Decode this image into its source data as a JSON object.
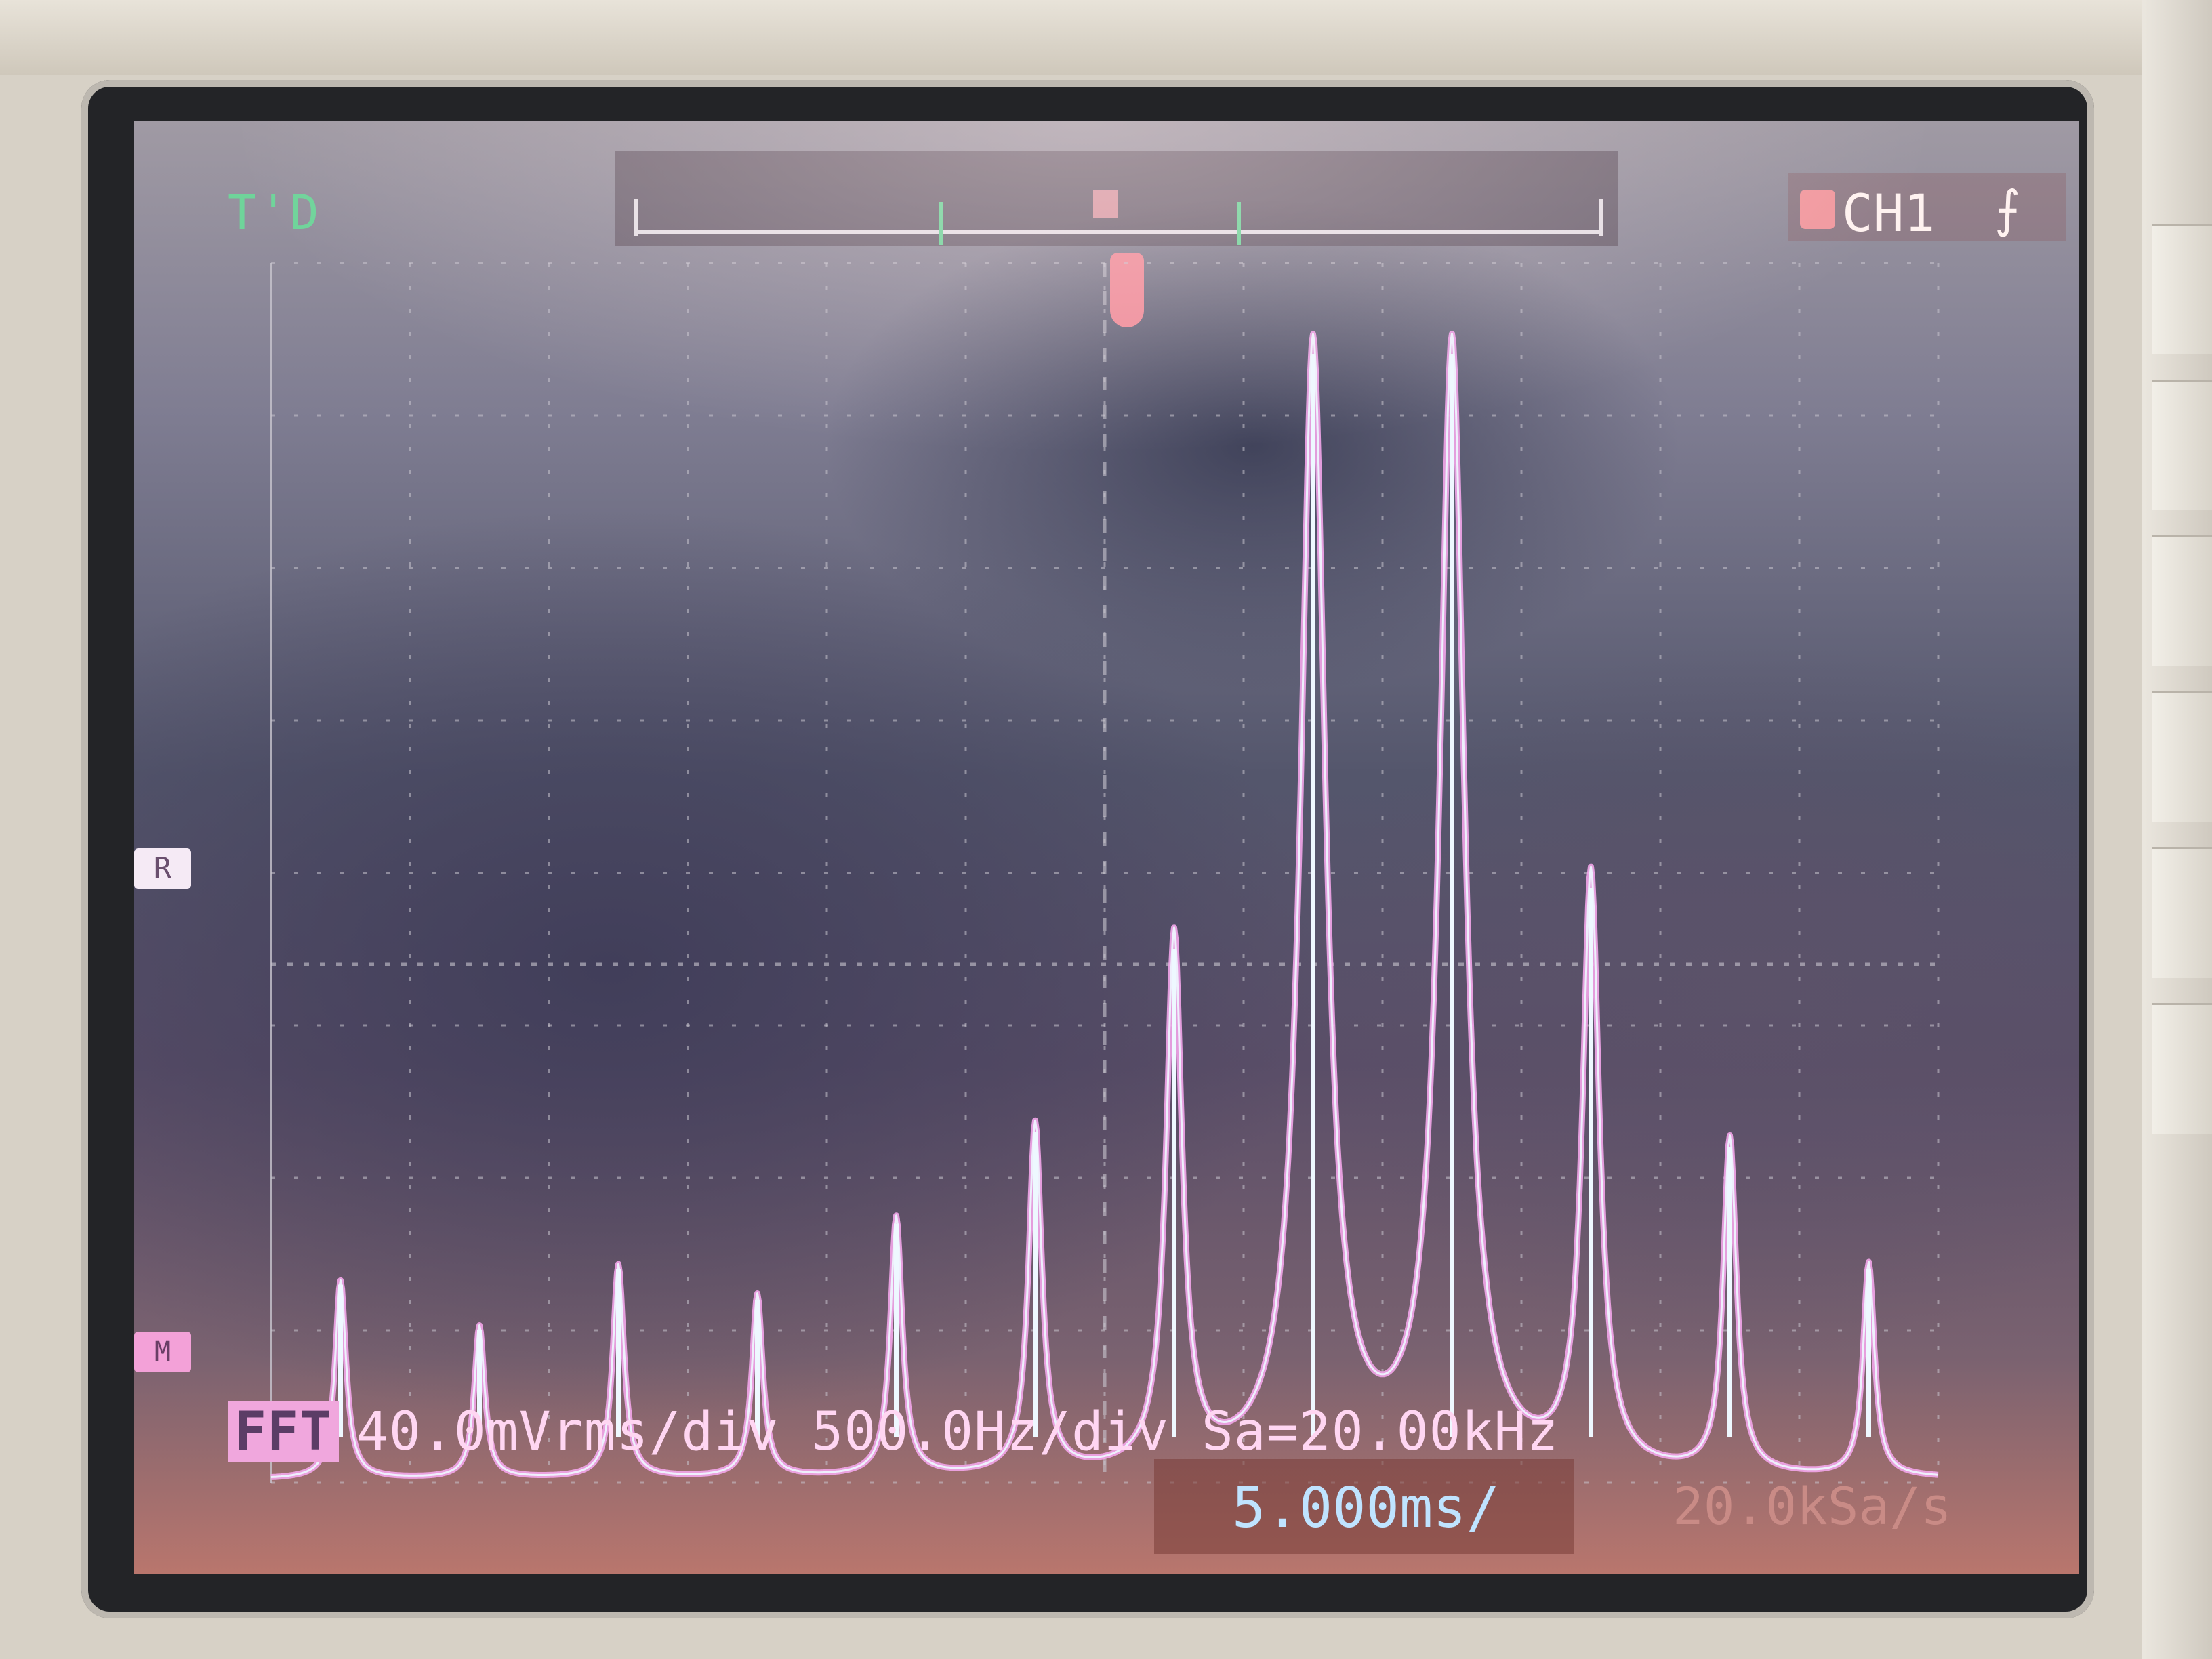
{
  "display": {
    "trigger_status": "T'D",
    "channel": "CH1",
    "trigger_slope_icon": "rising-edge-icon",
    "fft_badge": "FFT",
    "fft_scale": "40.0mVrms/div 500.0Hz/div Sa=20.00kHz",
    "timebase": "5.000ms/",
    "sample_rate": "20.0kSa/s",
    "ref_marker": "R",
    "ground_marker": "M"
  },
  "colors": {
    "trace": "#f3a6ea",
    "trace_core": "#eef8ff",
    "grid": "#c9c6cf",
    "status_text": "#ffd6f2",
    "trigger_text": "#6fd49a"
  },
  "chart_data": {
    "type": "line",
    "xlabel": "",
    "ylabel": "",
    "xlim": [
      0,
      12
    ],
    "ylim": [
      0,
      8
    ],
    "grid": true,
    "series": [
      {
        "peaks_x": [
          0.5,
          1.5,
          2.5,
          3.5,
          4.5,
          5.5,
          6.5,
          7.5,
          8.5,
          9.5,
          10.5,
          11.5
        ],
        "peaks_y": [
          1.3,
          1.0,
          1.4,
          1.2,
          1.7,
          2.3,
          3.5,
          7.4,
          7.4,
          3.9,
          2.2,
          1.4
        ],
        "baseline_y": 0.02
      }
    ]
  }
}
